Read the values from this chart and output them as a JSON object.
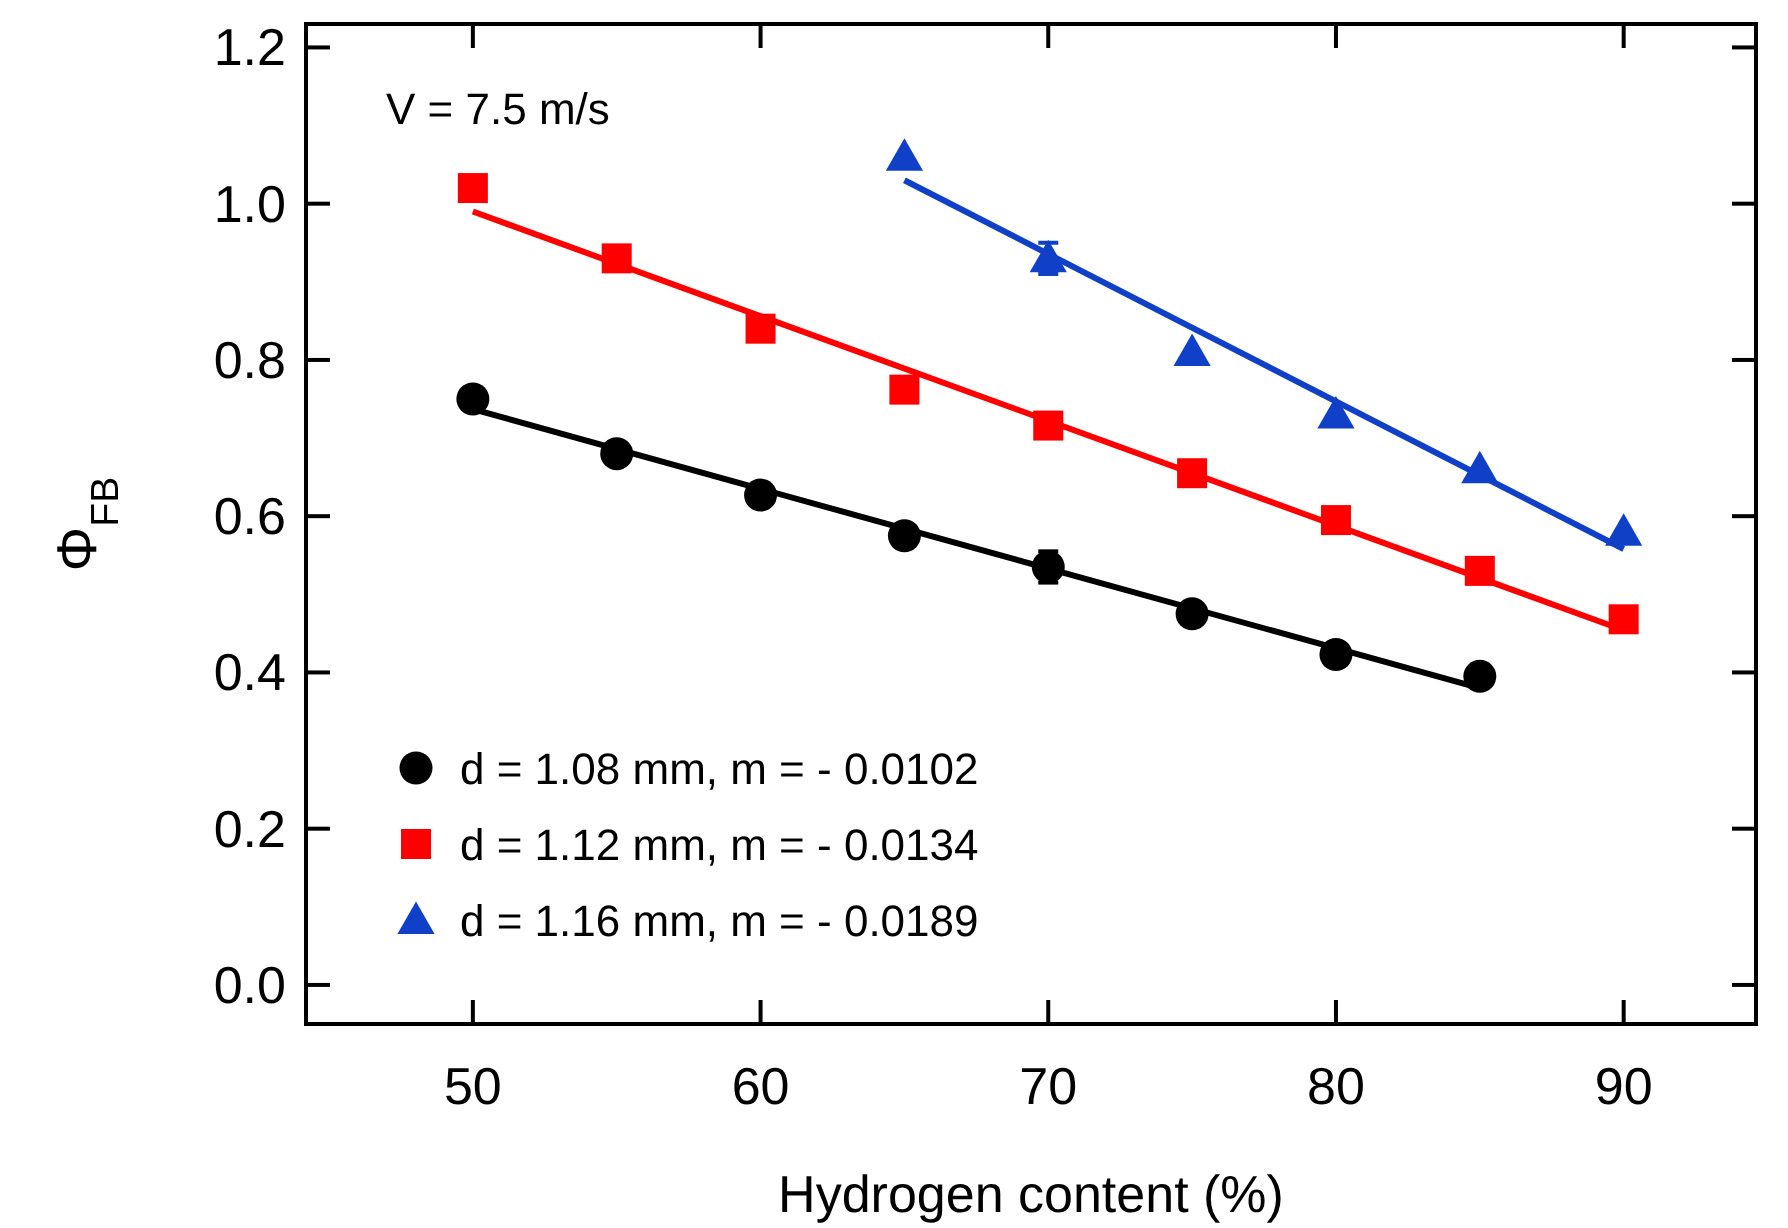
{
  "chart_data": {
    "type": "scatter",
    "xlabel": "Hydrogen content (%)",
    "ylabel": "Φ$_{FB}$",
    "annotations": [
      "V = 7.5 m/s"
    ],
    "xlim": [
      44.2,
      94.6
    ],
    "xticks": [
      50,
      60,
      70,
      80,
      90
    ],
    "ylim": [
      -0.05,
      1.23
    ],
    "yticks": [
      {
        "value": 0,
        "label": "0.0"
      },
      0.2,
      0.4,
      0.6,
      0.8,
      {
        "value": 1,
        "label": "1.0"
      },
      1.2
    ],
    "grid": false,
    "legend": "bottom left",
    "series": [
      {
        "name": "d = 1.08 mm, m = - 0.0102",
        "color": "#000000",
        "marker": "circle",
        "x": [
          50,
          55,
          60,
          65,
          70,
          75,
          80,
          85
        ],
        "values": [
          0.75,
          0.68,
          0.627,
          0.575,
          0.535,
          0.475,
          0.423,
          0.395
        ],
        "errors": [
          null,
          null,
          null,
          null,
          0.02,
          null,
          null,
          null
        ]
      },
      {
        "name": "d = 1.12 mm, m = - 0.0134",
        "color": "#ff0000",
        "marker": "square",
        "x": [
          50,
          55,
          60,
          65,
          70,
          75,
          80,
          85,
          90
        ],
        "values": [
          1.02,
          0.93,
          0.84,
          0.762,
          0.716,
          0.655,
          0.595,
          0.53,
          0.468
        ]
      },
      {
        "name": "d = 1.16 mm, m = - 0.0189",
        "color": "#1040c8",
        "marker": "triangle",
        "x": [
          65,
          70,
          75,
          80,
          85,
          90
        ],
        "values": [
          1.06,
          0.93,
          0.81,
          0.73,
          0.66,
          0.58
        ],
        "errors": [
          null,
          0.02,
          null,
          null,
          null,
          null
        ]
      },
      {
        "type": "line",
        "color": "#000000",
        "marker": "none",
        "x": [
          50,
          85
        ],
        "values": [
          0.737,
          0.38
        ]
      },
      {
        "type": "line",
        "color": "#ff0000",
        "marker": "none",
        "x": [
          50,
          90
        ],
        "values": [
          0.99,
          0.454
        ]
      },
      {
        "type": "line",
        "color": "#1040c8",
        "marker": "none",
        "x": [
          65,
          90
        ],
        "values": [
          1.03,
          0.558
        ]
      }
    ]
  }
}
